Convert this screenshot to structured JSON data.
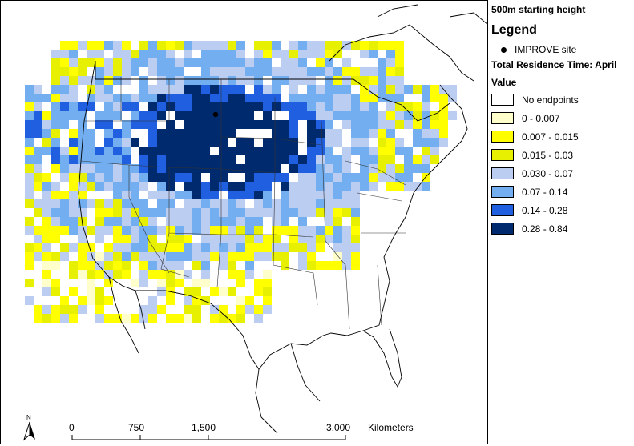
{
  "subtitle": "500m starting height",
  "legend": {
    "title": "Legend",
    "site_label": "IMPROVE site",
    "layer_title": "Total Residence Time: April",
    "field_title": "Value",
    "classes": [
      {
        "label": "No endpoints",
        "color": "#ffffff"
      },
      {
        "label": "0 - 0.007",
        "color": "#ffffcc"
      },
      {
        "label": "0.007 - 0.015",
        "color": "#ffff00"
      },
      {
        "label": "0.015 - 0.03",
        "color": "#e6f000"
      },
      {
        "label": "0.030 - 0.07",
        "color": "#bccdf2"
      },
      {
        "label": "0.07 - 0.14",
        "color": "#72aef0"
      },
      {
        "label": "0.14 - 0.28",
        "color": "#1f5fe0"
      },
      {
        "label": "0.28 - 0.84",
        "color": "#002a6e"
      }
    ]
  },
  "scale": {
    "ticks": [
      "0",
      "750",
      "1,500",
      "3,000"
    ],
    "unit": "Kilometers"
  },
  "north_label": "N"
}
